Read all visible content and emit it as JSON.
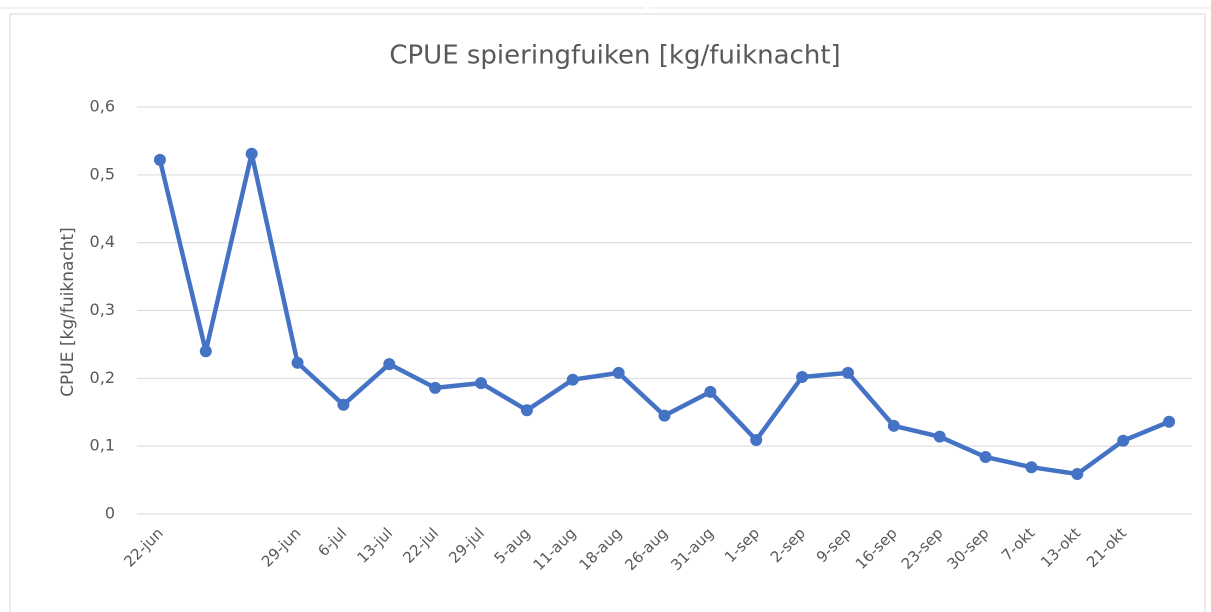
{
  "chart_data": {
    "type": "line",
    "title": "CPUE spieringfuiken [kg/fuiknacht]",
    "y_label": "CPUE [kg/fuiknacht]",
    "categories": [
      "22-jun",
      null,
      null,
      "29-jun",
      "6-jul",
      "13-jul",
      "22-jul",
      "29-jul",
      "5-aug",
      "11-aug",
      "18-aug",
      "26-aug",
      "31-aug",
      "1-sep",
      "2-sep",
      "9-sep",
      "16-sep",
      "23-sep",
      "30-sep",
      "7-okt",
      "13-okt",
      "21-okt",
      null
    ],
    "series": [
      {
        "name": "CPUE",
        "color": "#4472c4",
        "values": [
          0.522,
          0.24,
          0.531,
          0.223,
          0.161,
          0.221,
          0.186,
          0.193,
          0.153,
          0.198,
          0.208,
          0.145,
          0.18,
          0.109,
          0.202,
          0.208,
          0.13,
          0.114,
          0.084,
          0.069,
          0.059,
          0.108,
          0.136
        ]
      }
    ],
    "ylim": [
      0,
      0.6
    ],
    "yticks": [
      0,
      {
        "value": 0.1,
        "label": "0,1"
      },
      {
        "value": 0.2,
        "label": "0,2"
      },
      {
        "value": 0.3,
        "label": "0,3"
      },
      {
        "value": 0.4,
        "label": "0,4"
      },
      {
        "value": 0.5,
        "label": "0,5"
      },
      {
        "value": 0.6,
        "label": "0,6"
      }
    ],
    "grid": true
  }
}
